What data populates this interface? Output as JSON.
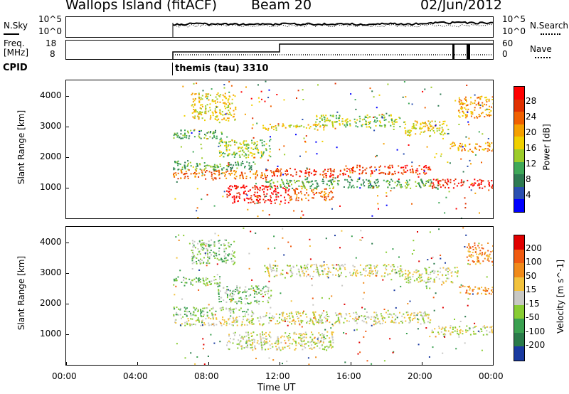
{
  "header": {
    "station": "Wallops Island (fitACF)",
    "beam": "Beam 20",
    "date": "02/Jun/2012"
  },
  "noise_panel": {
    "left_label": "N.Sky",
    "left_ticks": [
      "10^5",
      "10^0"
    ],
    "right_ticks": [
      "10^5",
      "10^0"
    ],
    "right_label": "N.Search"
  },
  "freq_panel": {
    "left_label_1": "Freq.",
    "left_label_2": "[MHz]",
    "left_ticks": [
      "18",
      "8"
    ],
    "right_ticks": [
      "60",
      "0"
    ],
    "right_label": "Nave"
  },
  "cpid": {
    "label": "CPID",
    "program": "themis (tau) 3310"
  },
  "chart_data": [
    {
      "type": "heatmap",
      "panel": "power",
      "ylabel": "Slant Range [km]",
      "yticks": [
        "4000",
        "3000",
        "2000",
        "1000"
      ],
      "ylim": [
        0,
        4500
      ],
      "xlim": [
        0,
        24
      ],
      "data_start_hour": 6,
      "colorbar": {
        "label": "Power [dB]",
        "ticks": [
          "28",
          "24",
          "20",
          "16",
          "12",
          "8",
          "4"
        ],
        "range": [
          0,
          30
        ],
        "colors": [
          "#0000ff",
          "#2a4fb0",
          "#2e7a52",
          "#3fa858",
          "#9ccc2a",
          "#f0d000",
          "#f5a000",
          "#f06000",
          "#e03000",
          "#ff0000"
        ]
      },
      "bands": [
        {
          "t0": 6.0,
          "t1": 11.2,
          "r0": 1300,
          "r1": 1600,
          "level": 7
        },
        {
          "t0": 11.2,
          "t1": 16.0,
          "r0": 1350,
          "r1": 1650,
          "level": 8
        },
        {
          "t0": 16.0,
          "t1": 20.5,
          "r0": 1450,
          "r1": 1750,
          "level": 8
        },
        {
          "t0": 20.5,
          "t1": 24.0,
          "r0": 1000,
          "r1": 1300,
          "level": 9
        },
        {
          "t0": 9.0,
          "t1": 12.5,
          "r0": 500,
          "r1": 1100,
          "level": 9
        },
        {
          "t0": 12.5,
          "t1": 15.0,
          "r0": 600,
          "r1": 1000,
          "level": 7
        },
        {
          "t0": 6.0,
          "t1": 10.5,
          "r0": 1600,
          "r1": 1900,
          "level": 3
        },
        {
          "t0": 6.0,
          "t1": 8.8,
          "r0": 2600,
          "r1": 2900,
          "level": 3
        },
        {
          "t0": 8.5,
          "t1": 11.5,
          "r0": 2000,
          "r1": 2600,
          "level": 4
        },
        {
          "t0": 7.0,
          "t1": 9.5,
          "r0": 3200,
          "r1": 4100,
          "level": 5
        },
        {
          "t0": 11.0,
          "t1": 14.5,
          "r0": 2900,
          "r1": 3100,
          "level": 5
        },
        {
          "t0": 14.0,
          "t1": 19.0,
          "r0": 3000,
          "r1": 3400,
          "level": 4
        },
        {
          "t0": 19.0,
          "t1": 21.5,
          "r0": 2700,
          "r1": 3200,
          "level": 5
        },
        {
          "t0": 21.5,
          "t1": 24.0,
          "r0": 2200,
          "r1": 2500,
          "level": 6
        },
        {
          "t0": 22.0,
          "t1": 24.0,
          "r0": 3300,
          "r1": 4000,
          "level": 6
        },
        {
          "t0": 11.0,
          "t1": 21.0,
          "r0": 1000,
          "r1": 1300,
          "level": 3
        }
      ]
    },
    {
      "type": "heatmap",
      "panel": "velocity",
      "ylabel": "Slant Range [km]",
      "yticks": [
        "4000",
        "3000",
        "2000",
        "1000"
      ],
      "ylim": [
        0,
        4500
      ],
      "xlim": [
        0,
        24
      ],
      "colorbar": {
        "label": "Velocity [m s^-1]",
        "ticks": [
          "200",
          "100",
          "50",
          "15",
          "-15",
          "-50",
          "-100",
          "-200"
        ],
        "colors": [
          "#1a3aa0",
          "#2a7a4a",
          "#3aa050",
          "#88cc33",
          "#c8c8c4",
          "#f2c23c",
          "#f08a1a",
          "#f05a10",
          "#e00000"
        ]
      },
      "bands": [
        {
          "t0": 6.0,
          "t1": 11.2,
          "r0": 1300,
          "r1": 1600,
          "level": 4
        },
        {
          "t0": 11.2,
          "t1": 20.5,
          "r0": 1350,
          "r1": 1750,
          "level": 4
        },
        {
          "t0": 20.5,
          "t1": 24.0,
          "r0": 1000,
          "r1": 1300,
          "level": 4
        },
        {
          "t0": 9.0,
          "t1": 15.0,
          "r0": 500,
          "r1": 1100,
          "level": 4
        },
        {
          "t0": 6.0,
          "t1": 10.5,
          "r0": 1600,
          "r1": 1900,
          "level": 3
        },
        {
          "t0": 6.0,
          "t1": 8.8,
          "r0": 2600,
          "r1": 2900,
          "level": 3
        },
        {
          "t0": 8.5,
          "t1": 11.5,
          "r0": 2000,
          "r1": 2600,
          "level": 3
        },
        {
          "t0": 7.0,
          "t1": 9.5,
          "r0": 3300,
          "r1": 4100,
          "level": 3
        },
        {
          "t0": 11.0,
          "t1": 19.0,
          "r0": 2900,
          "r1": 3300,
          "level": 4
        },
        {
          "t0": 19.0,
          "t1": 22.0,
          "r0": 2700,
          "r1": 3200,
          "level": 4
        },
        {
          "t0": 22.0,
          "t1": 24.0,
          "r0": 2300,
          "r1": 2600,
          "level": 6
        },
        {
          "t0": 22.5,
          "t1": 24.0,
          "r0": 3300,
          "r1": 4000,
          "level": 6
        }
      ]
    }
  ],
  "x_axis": {
    "ticks": [
      "00:00",
      "04:00",
      "08:00",
      "12:00",
      "16:00",
      "20:00",
      "00:00"
    ],
    "label": "Time UT"
  }
}
